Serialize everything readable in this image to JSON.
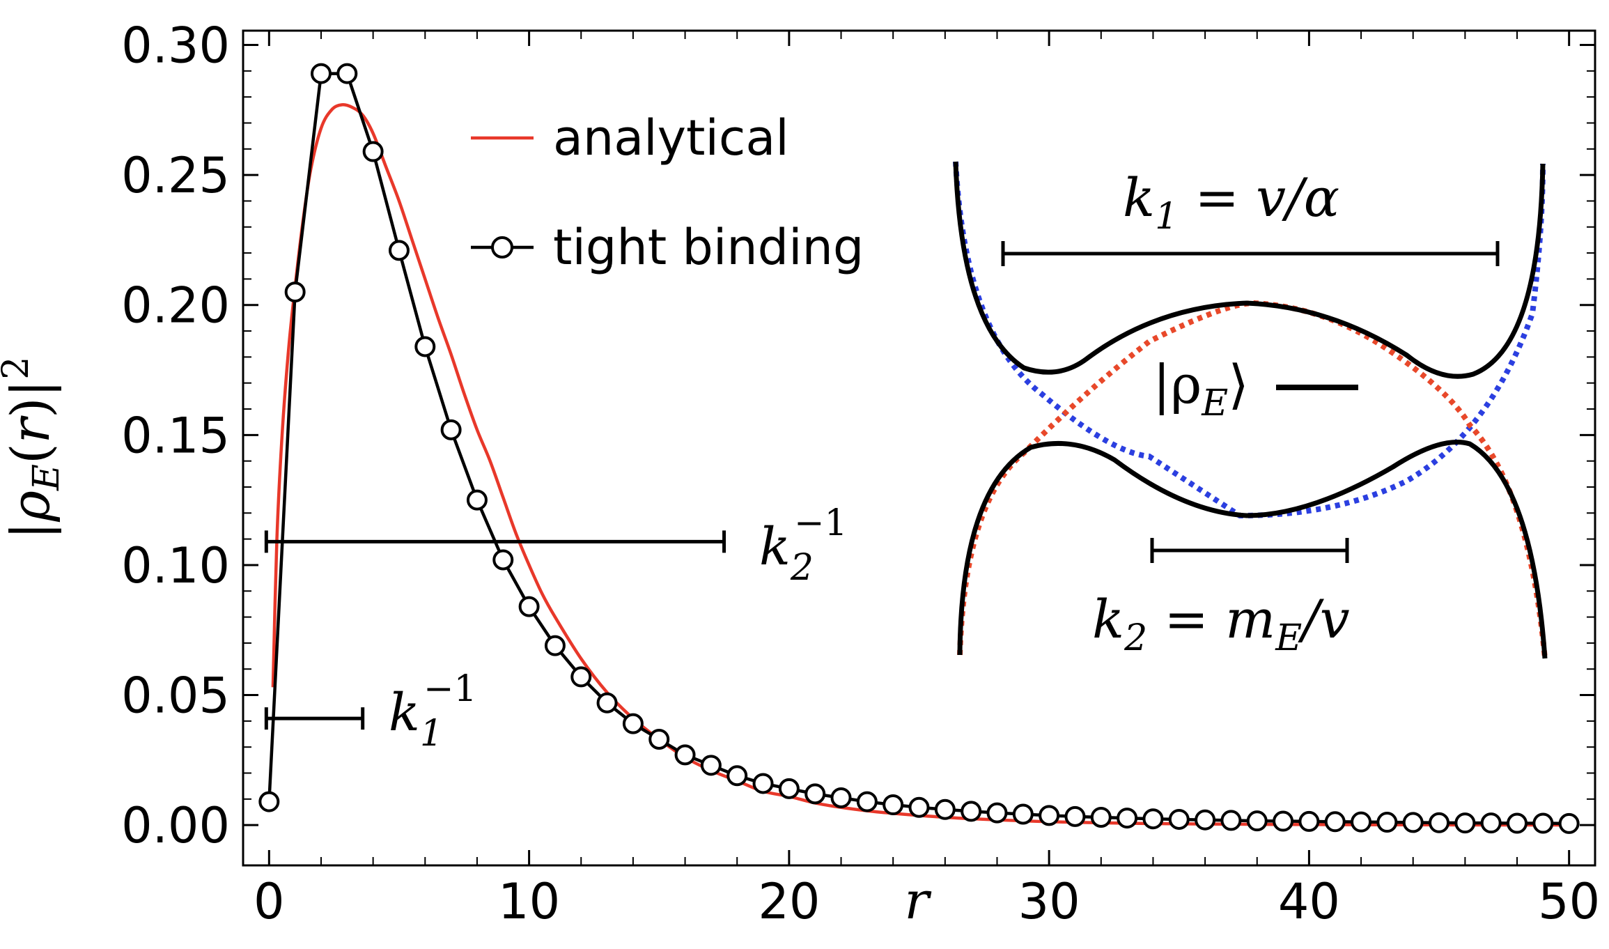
{
  "chart_data": {
    "type": "line",
    "xlabel": "r",
    "ylabel": "|ρ_E(r)|²",
    "xlim": [
      -1,
      51
    ],
    "ylim": [
      -0.0155,
      0.3055
    ],
    "x_ticks": [
      0,
      10,
      20,
      30,
      40,
      50
    ],
    "x_tick_labels": [
      "0",
      "10",
      "20",
      "30",
      "40",
      "50"
    ],
    "y_ticks": [
      0.0,
      0.05,
      0.1,
      0.15,
      0.2,
      0.25,
      0.3
    ],
    "y_tick_labels": [
      "0.00",
      "0.05",
      "0.10",
      "0.15",
      "0.20",
      "0.25",
      "0.30"
    ],
    "grid": false,
    "legend_position": "top-center",
    "series": [
      {
        "name": "analytical",
        "color": "#e8382a",
        "style": "line",
        "x": [
          0.15,
          0.3,
          0.5,
          0.75,
          1.0,
          1.3,
          1.6,
          2.0,
          2.4,
          2.8,
          3.2,
          3.6,
          4.0,
          4.5,
          5.0,
          5.5,
          6.0,
          6.5,
          7.0,
          7.5,
          8.0,
          8.5,
          9.0,
          9.5,
          10.0,
          10.5,
          11.0,
          12.0,
          13.0,
          14.0,
          15.0,
          16.0,
          17.0,
          18.0,
          19.0,
          20.0,
          21.0,
          22.0,
          23.0,
          24.0,
          26.0,
          28.0,
          30.0,
          33.0,
          36.0,
          40.0,
          44.0,
          48.0,
          50.0
        ],
        "y": [
          0.053,
          0.11,
          0.15,
          0.183,
          0.207,
          0.232,
          0.252,
          0.268,
          0.275,
          0.277,
          0.276,
          0.273,
          0.266,
          0.253,
          0.24,
          0.225,
          0.21,
          0.195,
          0.181,
          0.166,
          0.152,
          0.14,
          0.126,
          0.112,
          0.1,
          0.089,
          0.08,
          0.064,
          0.051,
          0.041,
          0.033,
          0.026,
          0.021,
          0.017,
          0.013,
          0.011,
          0.0085,
          0.0068,
          0.0055,
          0.0045,
          0.003,
          0.002,
          0.0013,
          0.0007,
          0.0004,
          0.0002,
          0.0001,
          5e-05,
          3e-05
        ]
      },
      {
        "name": "tight binding",
        "color": "#000000",
        "style": "line+circle",
        "x": [
          0,
          1,
          2,
          3,
          4,
          5,
          6,
          7,
          8,
          9,
          10,
          11,
          12,
          13,
          14,
          15,
          16,
          17,
          18,
          19,
          20,
          21,
          22,
          23,
          24,
          25,
          26,
          27,
          28,
          29,
          30,
          31,
          32,
          33,
          34,
          35,
          36,
          37,
          38,
          39,
          40,
          41,
          42,
          43,
          44,
          45,
          46,
          47,
          48,
          49,
          50
        ],
        "y": [
          0.009,
          0.205,
          0.289,
          0.289,
          0.259,
          0.221,
          0.184,
          0.152,
          0.125,
          0.102,
          0.084,
          0.069,
          0.057,
          0.047,
          0.039,
          0.033,
          0.027,
          0.023,
          0.019,
          0.016,
          0.014,
          0.012,
          0.0105,
          0.009,
          0.0078,
          0.0068,
          0.006,
          0.0053,
          0.0047,
          0.0042,
          0.0037,
          0.0033,
          0.003,
          0.0027,
          0.0024,
          0.0022,
          0.002,
          0.0018,
          0.0016,
          0.0015,
          0.0014,
          0.0013,
          0.0012,
          0.0011,
          0.001,
          0.0009,
          0.0008,
          0.0008,
          0.0007,
          0.0007,
          0.0006
        ]
      }
    ],
    "length_bars": [
      {
        "name": "k2-inverse-bar",
        "x_start": 0,
        "x_end": 17.5,
        "y": 0.109
      },
      {
        "name": "k1-inverse-bar",
        "x_start": 0,
        "x_end": 3.6,
        "y": 0.041
      }
    ],
    "annotations": {
      "k2_inv_base": "k",
      "k2_inv_sub": "2",
      "k2_inv_sup": "−1",
      "k1_inv_base": "k",
      "k1_inv_sub": "1",
      "k1_inv_sup": "−1"
    },
    "inset": {
      "k1_base": "k",
      "k1_sub": "1",
      "k1_rest": " = v/α",
      "k2_base": "k",
      "k2_sub": "2",
      "k2_rest1": " = m",
      "k2_sub2": "E",
      "k2_rest2": "/v",
      "state_text": "|ρ",
      "state_sub": "E",
      "state_close": "⟩",
      "colors": {
        "upper_branch": "#2b3fe0",
        "lower_branch": "#e8482a",
        "curve": "#000000"
      }
    }
  }
}
